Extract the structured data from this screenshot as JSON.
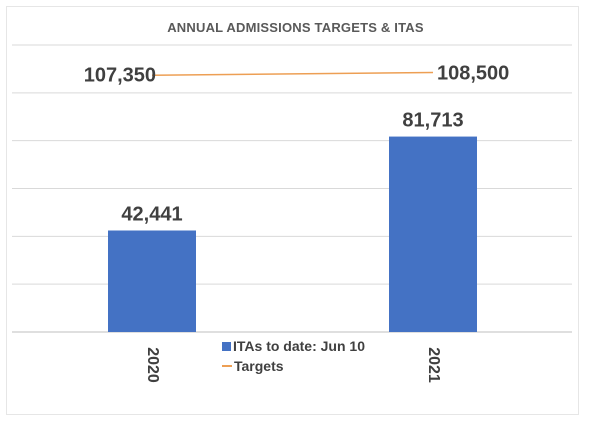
{
  "colors": {
    "bar": "#4472C4",
    "line": "#ED9F54",
    "grid": "#d9d9d9",
    "text": "#404040"
  },
  "chart_data": {
    "type": "bar",
    "title": "ANNUAL ADMISSIONS TARGETS & ITAS",
    "categories": [
      "2020",
      "2021"
    ],
    "ylim": [
      0,
      120000
    ],
    "grid": true,
    "legend_position": "bottom-center",
    "series": [
      {
        "name": "ITAs to date: Jun 10",
        "type": "bar",
        "values": [
          42441,
          81713
        ],
        "labels": [
          "42,441",
          "81,713"
        ]
      },
      {
        "name": "Targets",
        "type": "line",
        "values": [
          107350,
          108500
        ],
        "labels": [
          "107,350",
          "108,500"
        ]
      }
    ]
  }
}
